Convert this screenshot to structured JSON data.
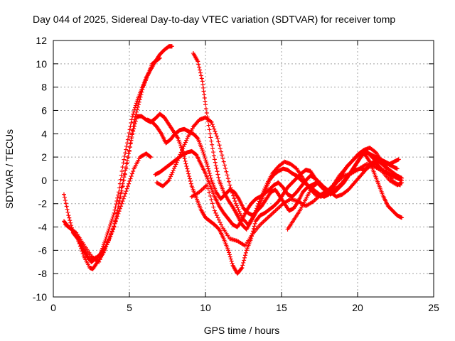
{
  "chart_data": {
    "type": "scatter",
    "title": "Day 044 of 2025, Sidereal Day-to-day VTEC variation (SDTVAR) for receiver tomp",
    "xlabel": "GPS time / hours",
    "ylabel": "SDTVAR / TECUs",
    "xlim": [
      0,
      25
    ],
    "ylim": [
      -10,
      12
    ],
    "x_ticks": [
      0,
      5,
      10,
      15,
      20,
      25
    ],
    "y_ticks": [
      -10,
      -8,
      -6,
      -4,
      -2,
      0,
      2,
      4,
      6,
      8,
      10,
      12
    ],
    "grid": true,
    "marker": "+",
    "color": "#ff0000",
    "series": [
      {
        "x": [
          0.7,
          1.0,
          1.3,
          1.6,
          1.9,
          2.2,
          2.5,
          2.8,
          3.1,
          3.4,
          3.7,
          4.0,
          4.3,
          4.6,
          4.9,
          5.2,
          5.5,
          5.8,
          6.1,
          6.4,
          6.7,
          7.0,
          7.3,
          7.6,
          7.8
        ],
        "y": [
          -1.2,
          -3.0,
          -4.5,
          -5.0,
          -5.8,
          -6.5,
          -7.0,
          -6.7,
          -6.3,
          -5.2,
          -4.0,
          -2.8,
          -1.0,
          1.5,
          3.5,
          5.5,
          6.8,
          7.8,
          8.8,
          9.5,
          10.2,
          10.8,
          11.2,
          11.5,
          11.5
        ]
      },
      {
        "x": [
          0.7,
          1.0,
          1.5,
          2.0,
          2.5,
          3.0,
          3.5,
          4.0,
          4.5,
          5.0,
          5.3,
          5.6,
          5.9,
          6.2,
          6.5,
          6.8,
          7.0
        ],
        "y": [
          -3.5,
          -4.0,
          -4.5,
          -5.8,
          -6.8,
          -6.5,
          -5.5,
          -4.0,
          -1.0,
          2.5,
          5.0,
          6.5,
          8.0,
          9.0,
          10.0,
          10.3,
          10.5
        ]
      },
      {
        "x": [
          0.8,
          1.2,
          1.6,
          2.0,
          2.4,
          2.6,
          2.9,
          3.3,
          3.7,
          4.1,
          4.5,
          4.9,
          5.3,
          5.7,
          6.1,
          6.4
        ],
        "y": [
          -3.8,
          -4.2,
          -5.0,
          -6.5,
          -7.5,
          -7.6,
          -7.0,
          -6.2,
          -5.0,
          -3.5,
          -2.0,
          -0.5,
          1.0,
          2.0,
          2.3,
          2.0
        ]
      },
      {
        "x": [
          1.0,
          1.5,
          2.0,
          2.5,
          3.0,
          3.5,
          4.0,
          4.3,
          4.6,
          4.9,
          5.2,
          5.5,
          5.8,
          6.1,
          6.4,
          6.7,
          7.0,
          7.3
        ],
        "y": [
          -4.0,
          -4.5,
          -5.5,
          -6.5,
          -7.0,
          -5.5,
          -4.0,
          -2.0,
          0.0,
          2.0,
          4.0,
          5.5,
          5.5,
          5.2,
          5.0,
          5.3,
          5.7,
          5.4
        ]
      },
      {
        "x": [
          7.3,
          7.6,
          7.9,
          8.2,
          8.5,
          8.8,
          9.1,
          9.4,
          9.7,
          10.0,
          10.3,
          10.6,
          10.9,
          11.2,
          11.5,
          11.8,
          12.1,
          12.4,
          12.7,
          13.0,
          13.3,
          13.6,
          13.9,
          14.2,
          14.5,
          14.8,
          15.1,
          15.4,
          15.7,
          16.0,
          16.3,
          16.6,
          16.9,
          17.2,
          17.5,
          17.8,
          18.1,
          18.4,
          18.7,
          19.0,
          19.3,
          19.6,
          19.9,
          20.2,
          20.5,
          20.8,
          21.1,
          21.4,
          21.7,
          22.0,
          22.3,
          22.6,
          22.9
        ],
        "y": [
          5.4,
          4.8,
          4.2,
          3.6,
          2.5,
          1.0,
          -0.5,
          -1.5,
          -2.5,
          -3.2,
          -3.5,
          -3.8,
          -4.2,
          -5.0,
          -6.0,
          -7.3,
          -8.0,
          -7.5,
          -6.0,
          -5.0,
          -3.5,
          -3.0,
          -2.8,
          -2.5,
          -2.2,
          -1.8,
          -1.2,
          -0.6,
          -0.2,
          0.2,
          0.6,
          0.9,
          0.8,
          0.2,
          -0.4,
          -0.8,
          -1.0,
          -0.9,
          -0.6,
          -0.2,
          0.3,
          0.7,
          0.9,
          1.0,
          0.9,
          1.4,
          1.6,
          1.2,
          0.8,
          0.6,
          0.4,
          0.2,
          0.0
        ]
      },
      {
        "x": [
          9.2,
          9.5,
          9.8,
          10.0,
          10.3,
          10.6,
          10.9,
          11.2,
          11.5,
          11.8,
          12.1,
          12.4,
          12.7,
          13.0,
          13.3,
          13.6,
          13.9,
          14.2,
          14.5,
          14.8,
          15.1,
          15.4,
          15.7,
          16.0,
          16.3,
          16.6,
          16.9,
          17.2,
          17.5,
          17.8,
          18.1,
          18.4,
          18.7,
          19.0,
          19.3,
          19.6,
          19.9,
          20.2,
          20.5,
          20.8,
          21.1,
          21.4,
          21.7,
          22.0,
          22.3,
          22.6,
          22.9
        ],
        "y": [
          10.9,
          10.2,
          8.5,
          6.5,
          4.0,
          1.8,
          0.0,
          -1.0,
          -1.7,
          -2.3,
          -3.0,
          -3.8,
          -4.2,
          -3.5,
          -2.8,
          -2.0,
          -1.0,
          0.0,
          0.5,
          0.8,
          1.0,
          0.9,
          0.6,
          0.4,
          0.0,
          -0.3,
          -0.6,
          -0.9,
          -1.2,
          -1.4,
          -1.2,
          -0.6,
          0.0,
          0.6,
          1.2,
          1.6,
          2.0,
          2.4,
          2.2,
          1.6,
          0.6,
          -0.4,
          -1.4,
          -2.2,
          -2.6,
          -3.0,
          -3.2
        ]
      },
      {
        "x": [
          6.7,
          7.0,
          7.3,
          7.6,
          7.9,
          8.2,
          8.5,
          8.8,
          9.1,
          9.4,
          9.7,
          10.0,
          10.3,
          10.6,
          10.9,
          11.2,
          11.5,
          11.8,
          12.1,
          12.4,
          12.7,
          13.0,
          13.3,
          13.6,
          13.9,
          14.2,
          14.5,
          14.8,
          15.1,
          15.4,
          15.7,
          16.0,
          16.3,
          16.6,
          16.9,
          17.2,
          17.5,
          17.8,
          18.1,
          18.4,
          18.7,
          19.0,
          19.3,
          19.6,
          19.9,
          20.2,
          20.5,
          20.8,
          21.1,
          21.4,
          21.7,
          22.0,
          22.3,
          22.6
        ],
        "y": [
          0.5,
          0.7,
          1.0,
          1.3,
          1.6,
          1.9,
          2.2,
          2.4,
          2.5,
          2.2,
          1.4,
          0.6,
          -0.4,
          -1.4,
          -2.2,
          -2.8,
          -3.3,
          -3.8,
          -4.0,
          -3.4,
          -2.6,
          -2.0,
          -1.6,
          -1.4,
          -1.1,
          -0.8,
          -0.4,
          -0.2,
          -0.6,
          -1.2,
          -1.4,
          -1.0,
          -0.5,
          0.0,
          0.4,
          0.2,
          -0.2,
          -0.6,
          -0.9,
          -1.0,
          -0.7,
          -0.3,
          0.2,
          0.8,
          1.4,
          2.0,
          2.6,
          2.2,
          1.8,
          1.6,
          1.5,
          1.4,
          1.2,
          1.0
        ]
      },
      {
        "x": [
          6.2,
          6.5,
          6.8,
          7.1,
          7.4,
          7.7,
          8.0,
          8.3,
          8.6,
          8.9,
          9.2,
          9.5,
          9.8,
          10.1,
          10.4,
          10.7,
          11.0,
          11.3,
          11.6,
          11.9,
          12.2,
          12.5,
          12.8,
          13.1,
          13.4,
          13.7,
          14.0,
          14.3,
          14.6,
          14.9,
          15.2,
          15.5,
          15.8,
          16.1,
          16.4,
          16.7,
          17.0,
          17.3,
          17.6,
          17.9,
          18.2,
          18.5,
          18.8,
          19.1,
          19.4,
          19.7,
          20.0,
          20.3,
          20.6,
          20.9,
          21.2,
          21.5,
          21.8,
          22.1,
          22.4,
          22.7
        ],
        "y": [
          5.2,
          5.0,
          4.6,
          4.0,
          3.2,
          3.5,
          4.0,
          4.3,
          4.4,
          4.2,
          4.0,
          3.6,
          2.6,
          1.4,
          0.0,
          -1.0,
          -1.6,
          -1.2,
          -0.8,
          -1.0,
          -1.6,
          -2.4,
          -2.8,
          -3.0,
          -2.6,
          -2.2,
          -1.6,
          -1.0,
          -0.8,
          -1.4,
          -2.0,
          -2.6,
          -2.4,
          -1.8,
          -1.0,
          -0.6,
          -0.4,
          -0.2,
          -0.4,
          -0.8,
          -1.2,
          -1.0,
          -0.6,
          -0.2,
          0.4,
          1.0,
          1.6,
          2.2,
          2.4,
          2.2,
          2.0,
          1.8,
          1.6,
          1.4,
          1.6,
          1.8
        ]
      },
      {
        "x": [
          6.8,
          7.2,
          7.6,
          8.0,
          8.4,
          8.8,
          9.2,
          9.6,
          10.0,
          10.4,
          10.8,
          11.2,
          11.6,
          12.0,
          12.4,
          12.8,
          13.2,
          13.6,
          14.0,
          14.4,
          14.8,
          15.2,
          15.6,
          16.0,
          16.4,
          16.8,
          17.2,
          17.6,
          18.0,
          18.4,
          18.8,
          19.2,
          19.6,
          20.0,
          20.4,
          20.8,
          21.2,
          21.6,
          22.0,
          22.4,
          22.8
        ],
        "y": [
          -0.2,
          -0.5,
          0.0,
          1.2,
          2.4,
          3.6,
          4.6,
          5.2,
          5.4,
          5.0,
          3.6,
          1.6,
          -0.4,
          -2.0,
          -3.2,
          -3.8,
          -3.0,
          -1.6,
          -0.4,
          0.6,
          1.2,
          1.6,
          1.4,
          1.0,
          0.2,
          -0.6,
          -1.2,
          -1.4,
          -1.0,
          -0.4,
          0.4,
          1.0,
          1.6,
          2.2,
          2.6,
          2.8,
          2.4,
          1.6,
          0.6,
          -0.2,
          -0.4
        ]
      },
      {
        "x": [
          9.1,
          9.6,
          10.1,
          10.6,
          11.1,
          11.6,
          12.1,
          12.6,
          13.1,
          13.6,
          14.1,
          14.6,
          15.1,
          15.6,
          16.1,
          16.6,
          17.1,
          17.6,
          18.1,
          18.6,
          19.1,
          19.6,
          20.1,
          20.6,
          21.1,
          21.6,
          22.1,
          22.6,
          22.9
        ],
        "y": [
          -1.4,
          -1.0,
          -0.4,
          -2.6,
          -4.0,
          -5.0,
          -5.2,
          -5.6,
          -4.6,
          -3.8,
          -3.2,
          -2.6,
          -2.0,
          -1.6,
          -1.8,
          -2.2,
          -1.8,
          -1.2,
          -0.8,
          -0.2,
          0.4,
          0.6,
          1.0,
          1.4,
          1.2,
          0.8,
          0.0,
          -0.4,
          -0.2
        ]
      },
      {
        "x": [
          15.4,
          15.8,
          16.2,
          16.6,
          17.0,
          17.4,
          17.8,
          18.2,
          18.6,
          19.0,
          19.4,
          19.8,
          20.2,
          20.6,
          21.0,
          21.4,
          21.8,
          22.2,
          22.6,
          22.9
        ],
        "y": [
          -4.2,
          -3.4,
          -2.6,
          -1.6,
          -0.6,
          -0.2,
          -0.6,
          -1.0,
          -1.4,
          -1.2,
          -0.8,
          -0.2,
          0.4,
          1.0,
          1.4,
          1.6,
          1.2,
          0.8,
          0.4,
          0.2
        ]
      }
    ]
  }
}
